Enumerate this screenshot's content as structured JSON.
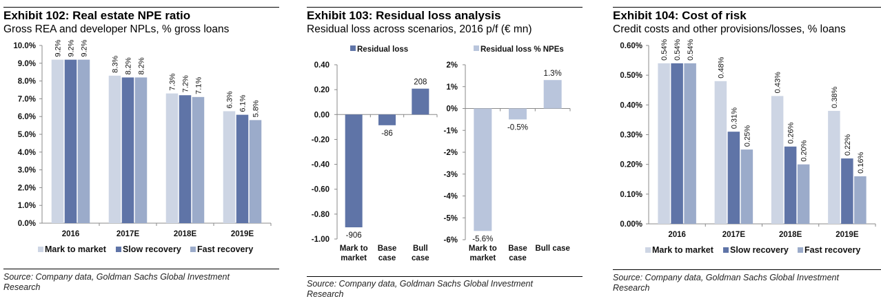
{
  "colors": {
    "mark_to_market": "#cdd5e4",
    "slow_recovery": "#5f74a7",
    "fast_recovery": "#9babca",
    "residual_loss": "#5f74a7",
    "residual_loss_pct": "#b9c5dc",
    "axis": "#888888"
  },
  "chart_data": [
    {
      "id": "exhibit102",
      "type": "bar",
      "title": "Exhibit 102: Real estate NPE ratio",
      "subtitle": "Gross REA and developer NPLs, % gross loans",
      "categories": [
        "2016",
        "2017E",
        "2018E",
        "2019E"
      ],
      "series": [
        {
          "name": "Mark to market",
          "values": [
            9.2,
            8.3,
            7.3,
            6.3
          ],
          "labels": [
            "9.2%",
            "8.3%",
            "7.3%",
            "6.3%"
          ]
        },
        {
          "name": "Slow recovery",
          "values": [
            9.2,
            8.2,
            7.2,
            6.1
          ],
          "labels": [
            "9.2%",
            "8.2%",
            "7.2%",
            "6.1%"
          ]
        },
        {
          "name": "Fast recovery",
          "values": [
            9.2,
            8.2,
            7.1,
            5.8
          ],
          "labels": [
            "9.2%",
            "8.2%",
            "7.1%",
            "5.8%"
          ]
        }
      ],
      "yticks": [
        0,
        1,
        2,
        3,
        4,
        5,
        6,
        7,
        8,
        9,
        10
      ],
      "ytick_labels": [
        "0.0%",
        "1.0%",
        "2.0%",
        "3.0%",
        "4.0%",
        "5.0%",
        "6.0%",
        "7.0%",
        "8.0%",
        "9.0%",
        "10.0%"
      ],
      "ylim": [
        0,
        10
      ],
      "legend": "bottom",
      "grid": false,
      "source": "Source:  Company data, Goldman Sachs Global Investment Research"
    },
    {
      "id": "exhibit103",
      "type": "bar",
      "title": "Exhibit 103: Residual loss analysis",
      "subtitle": "Residual loss across scenarios, 2016 p/f (€ mn)",
      "source": "Source:  Company data, Goldman Sachs Global Investment Research",
      "panels": [
        {
          "legend_label": "Residual loss",
          "categories": [
            "Mark to market",
            "Base case",
            "Bull case"
          ],
          "category_lines": [
            [
              "Mark to",
              "market"
            ],
            [
              "Base",
              "case"
            ],
            [
              "Bull",
              "case"
            ]
          ],
          "values": [
            -906,
            -86,
            208
          ],
          "labels": [
            "-906",
            "-86",
            "208"
          ],
          "yticks": [
            0.4,
            0.2,
            0.0,
            -0.2,
            -0.4,
            -0.6,
            -0.8,
            -1.0
          ],
          "ytick_labels": [
            "0.40",
            "0.20",
            "0.00",
            "-0.20",
            "-0.40",
            "-0.60",
            "-0.80",
            "-1.00"
          ],
          "ylim": [
            -1.0,
            0.4
          ],
          "value_scale": 0.001
        },
        {
          "legend_label": "Residual loss % NPEs",
          "categories": [
            "Mark to market",
            "Base case",
            "Bull case"
          ],
          "category_lines": [
            [
              "Mark to",
              "market"
            ],
            [
              "Base",
              "case"
            ],
            [
              "Bull case"
            ]
          ],
          "values": [
            -5.6,
            -0.5,
            1.3
          ],
          "labels": [
            "-5.6%",
            "-0.5%",
            "1.3%"
          ],
          "yticks": [
            2,
            1,
            0,
            -1,
            -2,
            -3,
            -4,
            -5,
            -6
          ],
          "ytick_labels": [
            "2%",
            "1%",
            "0%",
            "-1%",
            "-2%",
            "-3%",
            "-4%",
            "-5%",
            "-6%"
          ],
          "ylim": [
            -6,
            2
          ],
          "value_scale": 1
        }
      ]
    },
    {
      "id": "exhibit104",
      "type": "bar",
      "title": "Exhibit 104: Cost of risk",
      "subtitle": "Credit costs and other provisions/losses, % loans",
      "categories": [
        "2016",
        "2017E",
        "2018E",
        "2019E"
      ],
      "series": [
        {
          "name": "Mark to market",
          "values": [
            0.54,
            0.48,
            0.43,
            0.38
          ],
          "labels": [
            "0.54%",
            "0.48%",
            "0.43%",
            "0.38%"
          ]
        },
        {
          "name": "Slow recovery",
          "values": [
            0.54,
            0.31,
            0.26,
            0.22
          ],
          "labels": [
            "0.54%",
            "0.31%",
            "0.26%",
            "0.22%"
          ]
        },
        {
          "name": "Fast recovery",
          "values": [
            0.54,
            0.25,
            0.2,
            0.16
          ],
          "labels": [
            "0.54%",
            "0.25%",
            "0.20%",
            "0.16%"
          ]
        }
      ],
      "yticks": [
        0,
        0.1,
        0.2,
        0.3,
        0.4,
        0.5,
        0.6
      ],
      "ytick_labels": [
        "0.00%",
        "0.10%",
        "0.20%",
        "0.30%",
        "0.40%",
        "0.50%",
        "0.60%"
      ],
      "ylim": [
        0,
        0.6
      ],
      "legend": "bottom",
      "grid": false,
      "source": "Source:  Company data, Goldman Sachs Global Investment Research"
    }
  ]
}
